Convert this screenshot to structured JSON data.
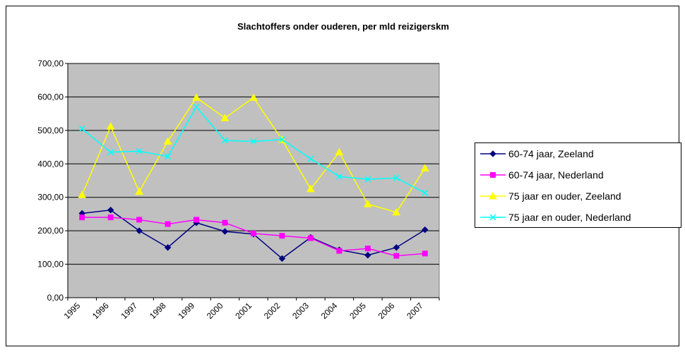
{
  "chart_data": {
    "type": "line",
    "title": "Slachtoffers onder ouderen, per mld reizigerskm",
    "categories": [
      "1995",
      "1996",
      "1997",
      "1998",
      "1999",
      "2000",
      "2001",
      "2002",
      "2003",
      "2004",
      "2005",
      "2006",
      "2007"
    ],
    "ylim": [
      0,
      700
    ],
    "yticks": [
      {
        "value": 0,
        "label": "0,00"
      },
      {
        "value": 100,
        "label": "100,00"
      },
      {
        "value": 200,
        "label": "200,00"
      },
      {
        "value": 300,
        "label": "300,00"
      },
      {
        "value": 400,
        "label": "400,00"
      },
      {
        "value": 500,
        "label": "500,00"
      },
      {
        "value": 600,
        "label": "600,00"
      },
      {
        "value": 700,
        "label": "700,00"
      }
    ],
    "grid": true,
    "legend": "right",
    "series": [
      {
        "name": "60-74 jaar, Zeeland",
        "color": "#000080",
        "marker": "diamond",
        "values": [
          252,
          262,
          200,
          150,
          224,
          198,
          190,
          117,
          180,
          143,
          127,
          150,
          203
        ]
      },
      {
        "name": "60-74 jaar, Nederland",
        "color": "#ff00ff",
        "marker": "square",
        "values": [
          240,
          240,
          233,
          220,
          233,
          224,
          192,
          185,
          178,
          140,
          147,
          125,
          132
        ]
      },
      {
        "name": "75 jaar en ouder, Zeeland",
        "color": "#ffff00",
        "marker": "triangle",
        "values": [
          307,
          512,
          317,
          467,
          598,
          537,
          598,
          472,
          325,
          435,
          280,
          255,
          387
        ]
      },
      {
        "name": "75 jaar en ouder, Nederland",
        "color": "#00ffff",
        "marker": "x",
        "values": [
          505,
          435,
          438,
          422,
          570,
          470,
          467,
          473,
          415,
          362,
          354,
          358,
          313
        ]
      }
    ]
  }
}
